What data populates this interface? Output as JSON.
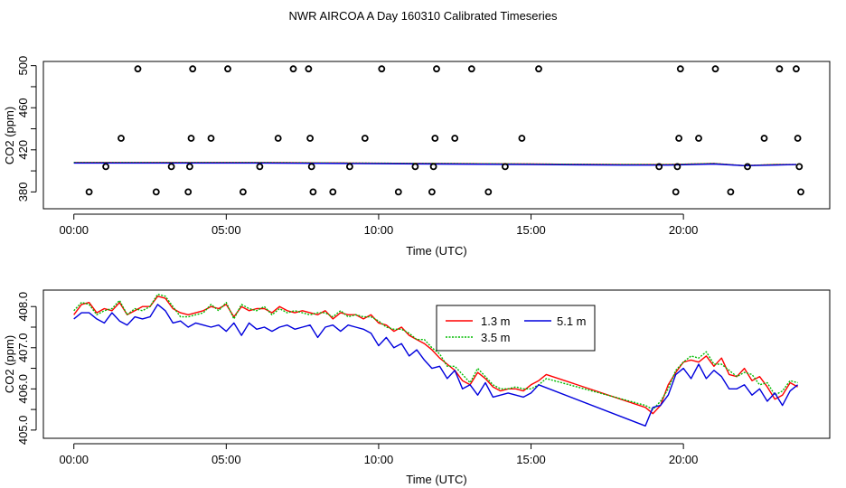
{
  "title": "NWR AIRCOA A  Day 160310  Calibrated Timeseries",
  "chart_data": [
    {
      "type": "line",
      "xlabel": "Time (UTC)",
      "ylabel": "CO2 (ppm)",
      "xlim": [
        -1.0,
        24.8
      ],
      "ylim": [
        364,
        504
      ],
      "x_ticks": [
        0,
        5,
        10,
        15,
        20
      ],
      "x_tick_labels": [
        "00:00",
        "05:00",
        "10:00",
        "15:00",
        "20:00"
      ],
      "y_ticks": [
        380,
        420,
        460,
        500
      ],
      "y_tick_labels": [
        "380",
        "420",
        "460",
        "500"
      ],
      "y_minor_ticks": [
        400,
        440,
        480
      ],
      "series": [
        {
          "name": "1.3 m",
          "color": "#ff0000",
          "x": [
            0.0,
            3.0,
            6.0,
            9.0,
            12.0,
            15.0,
            18.0,
            19.5,
            21.0,
            22.0,
            23.0,
            23.7
          ],
          "y": [
            408,
            408,
            408,
            407.5,
            407,
            406.5,
            406,
            406,
            407,
            405,
            406,
            406
          ]
        },
        {
          "name": "3.5 m",
          "color": "#00bb00",
          "x": [
            0.0,
            3.0,
            6.0,
            9.0,
            12.0,
            15.0,
            18.0,
            19.5,
            21.0,
            22.0,
            23.0,
            23.7
          ],
          "y": [
            408,
            408,
            408,
            407.5,
            407,
            406.5,
            406,
            406,
            407,
            405,
            406,
            406
          ]
        },
        {
          "name": "5.1 m",
          "color": "#0000dd",
          "x": [
            0.0,
            3.0,
            6.0,
            9.0,
            12.0,
            15.0,
            18.0,
            19.5,
            21.0,
            22.0,
            23.0,
            23.7
          ],
          "y": [
            407.5,
            407.5,
            407.5,
            407,
            406.5,
            406,
            405.5,
            405.5,
            406.5,
            405,
            405.5,
            406
          ]
        }
      ],
      "points": {
        "x": [
          0.5,
          1.05,
          1.55,
          2.1,
          2.7,
          3.2,
          3.75,
          3.8,
          3.85,
          3.9,
          4.5,
          5.05,
          5.55,
          6.1,
          6.7,
          7.2,
          7.7,
          7.75,
          7.8,
          7.85,
          8.5,
          9.05,
          9.55,
          10.1,
          10.65,
          11.2,
          11.75,
          11.8,
          11.85,
          11.9,
          12.5,
          13.05,
          13.6,
          14.15,
          14.7,
          15.25,
          19.2,
          19.75,
          19.8,
          19.85,
          19.9,
          20.5,
          21.05,
          21.55,
          22.1,
          22.65,
          23.15,
          23.7,
          23.75,
          23.8,
          23.85
        ],
        "y": [
          380,
          404,
          431,
          497,
          380,
          404,
          380,
          404,
          431,
          497,
          431,
          497,
          380,
          404,
          431,
          497,
          497,
          431,
          404,
          380,
          380,
          404,
          431,
          497,
          380,
          404,
          380,
          404,
          431,
          497,
          431,
          497,
          380,
          404,
          431,
          497,
          404,
          380,
          404,
          431,
          497,
          431,
          497,
          380,
          404,
          431,
          497,
          497,
          431,
          404,
          380
        ]
      }
    },
    {
      "type": "line",
      "xlabel": "Time (UTC)",
      "ylabel": "CO2 (ppm)",
      "xlim": [
        -1.0,
        24.8
      ],
      "ylim": [
        404.8,
        408.4
      ],
      "x_ticks": [
        0,
        5,
        10,
        15,
        20
      ],
      "x_tick_labels": [
        "00:00",
        "05:00",
        "10:00",
        "15:00",
        "20:00"
      ],
      "y_ticks": [
        405.0,
        406.0,
        407.0,
        408.0
      ],
      "y_tick_labels": [
        "405.0",
        "406.0",
        "407.0",
        "408.0"
      ],
      "y_minor_ticks": [
        405.5,
        406.5,
        407.5
      ],
      "legend": {
        "position": "top-center"
      },
      "series": [
        {
          "name": "1.3 m",
          "color": "#ff0000",
          "x": [
            0.0,
            0.25,
            0.5,
            0.75,
            1.0,
            1.25,
            1.5,
            1.75,
            2.0,
            2.25,
            2.5,
            2.75,
            3.0,
            3.25,
            3.5,
            3.75,
            4.0,
            4.25,
            4.5,
            4.75,
            5.0,
            5.25,
            5.5,
            5.75,
            6.0,
            6.25,
            6.5,
            6.75,
            7.0,
            7.25,
            7.5,
            7.75,
            8.0,
            8.25,
            8.5,
            8.75,
            9.0,
            9.25,
            9.5,
            9.75,
            10.0,
            10.25,
            10.5,
            10.75,
            11.0,
            11.25,
            11.5,
            11.75,
            12.0,
            12.25,
            12.5,
            12.75,
            13.0,
            13.25,
            13.5,
            13.75,
            14.0,
            14.25,
            14.5,
            14.75,
            15.0,
            15.25,
            15.5,
            18.75,
            19.0,
            19.25,
            19.5,
            19.75,
            20.0,
            20.25,
            20.5,
            20.75,
            21.0,
            21.25,
            21.5,
            21.75,
            22.0,
            22.25,
            22.5,
            22.75,
            23.0,
            23.25,
            23.5,
            23.75
          ],
          "y": [
            407.8,
            408.05,
            408.1,
            407.85,
            407.95,
            407.9,
            408.1,
            407.8,
            407.9,
            408.0,
            408.0,
            408.25,
            408.2,
            407.95,
            407.85,
            407.8,
            407.85,
            407.9,
            408.0,
            407.95,
            408.05,
            407.75,
            408.0,
            407.9,
            407.95,
            407.95,
            407.85,
            408.0,
            407.9,
            407.85,
            407.9,
            407.85,
            407.8,
            407.9,
            407.7,
            407.85,
            407.8,
            407.8,
            407.7,
            407.8,
            407.6,
            407.55,
            407.4,
            407.5,
            407.3,
            407.2,
            407.1,
            406.95,
            406.75,
            406.6,
            406.45,
            406.2,
            406.1,
            406.4,
            406.25,
            406.05,
            405.95,
            406.0,
            406.0,
            405.95,
            406.1,
            406.2,
            406.35,
            405.55,
            405.4,
            405.6,
            406.1,
            406.4,
            406.65,
            406.7,
            406.65,
            406.8,
            406.55,
            406.75,
            406.35,
            406.3,
            406.5,
            406.2,
            406.3,
            406.05,
            405.75,
            405.85,
            406.15,
            406.05
          ]
        },
        {
          "name": "3.5 m",
          "color": "#00bb00",
          "x": [
            0.0,
            0.25,
            0.5,
            0.75,
            1.0,
            1.25,
            1.5,
            1.75,
            2.0,
            2.25,
            2.5,
            2.75,
            3.0,
            3.25,
            3.5,
            3.75,
            4.0,
            4.25,
            4.5,
            4.75,
            5.0,
            5.25,
            5.5,
            5.75,
            6.0,
            6.25,
            6.5,
            6.75,
            7.0,
            7.25,
            7.5,
            7.75,
            8.0,
            8.25,
            8.5,
            8.75,
            9.0,
            9.25,
            9.5,
            9.75,
            10.0,
            10.25,
            10.5,
            10.75,
            11.0,
            11.25,
            11.5,
            11.75,
            12.0,
            12.25,
            12.5,
            12.75,
            13.0,
            13.25,
            13.5,
            13.75,
            14.0,
            14.25,
            14.5,
            14.75,
            15.0,
            15.25,
            15.5,
            18.75,
            19.0,
            19.25,
            19.5,
            19.75,
            20.0,
            20.25,
            20.5,
            20.75,
            21.0,
            21.25,
            21.5,
            21.75,
            22.0,
            22.25,
            22.5,
            22.75,
            23.0,
            23.25,
            23.5,
            23.75
          ],
          "y": [
            407.9,
            408.1,
            408.05,
            407.8,
            407.9,
            407.95,
            408.15,
            407.8,
            407.95,
            407.9,
            408.0,
            408.3,
            408.25,
            408.0,
            407.75,
            407.75,
            407.8,
            407.85,
            408.05,
            407.9,
            408.1,
            407.7,
            408.05,
            407.95,
            407.9,
            408.0,
            407.8,
            407.95,
            407.85,
            407.9,
            407.85,
            407.8,
            407.85,
            407.85,
            407.75,
            407.9,
            407.75,
            407.8,
            407.75,
            407.75,
            407.65,
            407.5,
            407.45,
            407.45,
            407.35,
            407.2,
            407.2,
            407.0,
            406.85,
            406.55,
            406.55,
            406.35,
            406.15,
            406.5,
            406.3,
            406.1,
            406.0,
            406.0,
            406.05,
            406.0,
            406.0,
            406.1,
            406.25,
            405.6,
            405.5,
            405.7,
            406.0,
            406.45,
            406.65,
            406.8,
            406.75,
            406.9,
            406.6,
            406.6,
            406.45,
            406.3,
            406.4,
            406.35,
            406.1,
            406.15,
            405.85,
            405.95,
            406.2,
            406.15
          ]
        },
        {
          "name": "5.1 m",
          "color": "#0000dd",
          "x": [
            0.0,
            0.25,
            0.5,
            0.75,
            1.0,
            1.25,
            1.5,
            1.75,
            2.0,
            2.25,
            2.5,
            2.75,
            3.0,
            3.25,
            3.5,
            3.75,
            4.0,
            4.25,
            4.5,
            4.75,
            5.0,
            5.25,
            5.5,
            5.75,
            6.0,
            6.25,
            6.5,
            6.75,
            7.0,
            7.25,
            7.5,
            7.75,
            8.0,
            8.25,
            8.5,
            8.75,
            9.0,
            9.25,
            9.5,
            9.75,
            10.0,
            10.25,
            10.5,
            10.75,
            11.0,
            11.25,
            11.5,
            11.75,
            12.0,
            12.25,
            12.5,
            12.75,
            13.0,
            13.25,
            13.5,
            13.75,
            14.0,
            14.25,
            14.5,
            14.75,
            15.0,
            15.25,
            18.75,
            19.0,
            19.25,
            19.5,
            19.75,
            20.0,
            20.25,
            20.5,
            20.75,
            21.0,
            21.25,
            21.5,
            21.75,
            22.0,
            22.25,
            22.5,
            22.75,
            23.0,
            23.25,
            23.5,
            23.75
          ],
          "y": [
            407.7,
            407.85,
            407.85,
            407.7,
            407.6,
            407.85,
            407.65,
            407.55,
            407.75,
            407.7,
            407.75,
            408.05,
            407.9,
            407.6,
            407.65,
            407.5,
            407.6,
            407.55,
            407.5,
            407.55,
            407.4,
            407.6,
            407.3,
            407.6,
            407.45,
            407.5,
            407.4,
            407.5,
            407.55,
            407.45,
            407.5,
            407.55,
            407.25,
            407.5,
            407.55,
            407.4,
            407.55,
            407.5,
            407.45,
            407.35,
            407.05,
            407.25,
            407.0,
            407.1,
            406.8,
            406.95,
            406.7,
            406.5,
            406.55,
            406.25,
            406.45,
            406.0,
            406.1,
            405.85,
            406.15,
            405.8,
            405.85,
            405.9,
            405.85,
            405.8,
            405.9,
            406.1,
            405.1,
            405.55,
            405.6,
            405.85,
            406.35,
            406.5,
            406.25,
            406.6,
            406.25,
            406.45,
            406.3,
            406.0,
            406.0,
            406.1,
            405.85,
            406.0,
            405.7,
            405.9,
            405.6,
            405.95,
            406.1
          ]
        }
      ]
    }
  ]
}
